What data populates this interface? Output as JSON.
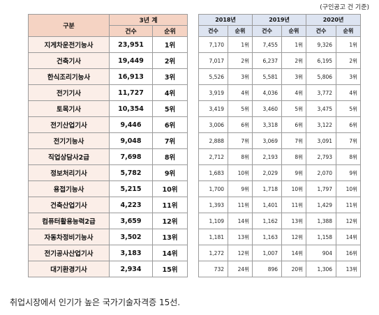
{
  "unit_note": "(구인공고 건 기준)",
  "headers": {
    "category": "구분",
    "three_year_total": "3년 계",
    "count": "건수",
    "rank": "순위",
    "years": [
      "2018년",
      "2019년",
      "2020년"
    ]
  },
  "rows": [
    {
      "name": "지게차운전기능사",
      "total": "23,951",
      "total_rank": "1위",
      "y2018": "7,170",
      "r2018": "1위",
      "y2019": "7,455",
      "r2019": "1위",
      "y2020": "9,326",
      "r2020": "1위"
    },
    {
      "name": "건축기사",
      "total": "19,449",
      "total_rank": "2위",
      "y2018": "7,017",
      "r2018": "2위",
      "y2019": "6,237",
      "r2019": "2위",
      "y2020": "6,195",
      "r2020": "2위"
    },
    {
      "name": "한식조리기능사",
      "total": "16,913",
      "total_rank": "3위",
      "y2018": "5,526",
      "r2018": "3위",
      "y2019": "5,581",
      "r2019": "3위",
      "y2020": "5,806",
      "r2020": "3위"
    },
    {
      "name": "전기기사",
      "total": "11,727",
      "total_rank": "4위",
      "y2018": "3,919",
      "r2018": "4위",
      "y2019": "4,036",
      "r2019": "4위",
      "y2020": "3,772",
      "r2020": "4위"
    },
    {
      "name": "토목기사",
      "total": "10,354",
      "total_rank": "5위",
      "y2018": "3,419",
      "r2018": "5위",
      "y2019": "3,460",
      "r2019": "5위",
      "y2020": "3,475",
      "r2020": "5위"
    },
    {
      "name": "전기산업기사",
      "total": "9,446",
      "total_rank": "6위",
      "y2018": "3,006",
      "r2018": "6위",
      "y2019": "3,318",
      "r2019": "6위",
      "y2020": "3,122",
      "r2020": "6위"
    },
    {
      "name": "전기기능사",
      "total": "9,048",
      "total_rank": "7위",
      "y2018": "2,888",
      "r2018": "7위",
      "y2019": "3,069",
      "r2019": "7위",
      "y2020": "3,091",
      "r2020": "7위"
    },
    {
      "name": "직업상담사2급",
      "total": "7,698",
      "total_rank": "8위",
      "y2018": "2,712",
      "r2018": "8위",
      "y2019": "2,193",
      "r2019": "8위",
      "y2020": "2,793",
      "r2020": "8위"
    },
    {
      "name": "정보처리기사",
      "total": "5,782",
      "total_rank": "9위",
      "y2018": "1,683",
      "r2018": "10위",
      "y2019": "2,029",
      "r2019": "9위",
      "y2020": "2,070",
      "r2020": "9위"
    },
    {
      "name": "용접기능사",
      "total": "5,215",
      "total_rank": "10위",
      "y2018": "1,700",
      "r2018": "9위",
      "y2019": "1,718",
      "r2019": "10위",
      "y2020": "1,797",
      "r2020": "10위"
    },
    {
      "name": "건축산업기사",
      "total": "4,223",
      "total_rank": "11위",
      "y2018": "1,393",
      "r2018": "11위",
      "y2019": "1,401",
      "r2019": "11위",
      "y2020": "1,429",
      "r2020": "11위"
    },
    {
      "name": "컴퓨터활용능력2급",
      "total": "3,659",
      "total_rank": "12위",
      "y2018": "1,109",
      "r2018": "14위",
      "y2019": "1,162",
      "r2019": "13위",
      "y2020": "1,388",
      "r2020": "12위"
    },
    {
      "name": "자동차정비기능사",
      "total": "3,502",
      "total_rank": "13위",
      "y2018": "1,181",
      "r2018": "13위",
      "y2019": "1,163",
      "r2019": "12위",
      "y2020": "1,158",
      "r2020": "14위"
    },
    {
      "name": "전기공사산업기사",
      "total": "3,183",
      "total_rank": "14위",
      "y2018": "1,272",
      "r2018": "12위",
      "y2019": "1,007",
      "r2019": "14위",
      "y2020": "904",
      "r2020": "16위"
    },
    {
      "name": "대기환경기사",
      "total": "2,934",
      "total_rank": "15위",
      "y2018": "732",
      "r2018": "24위",
      "y2019": "896",
      "r2019": "20위",
      "y2020": "1,306",
      "r2020": "13위"
    }
  ],
  "caption": "취업시장에서 인기가 높은 국가기술자격증 15선."
}
